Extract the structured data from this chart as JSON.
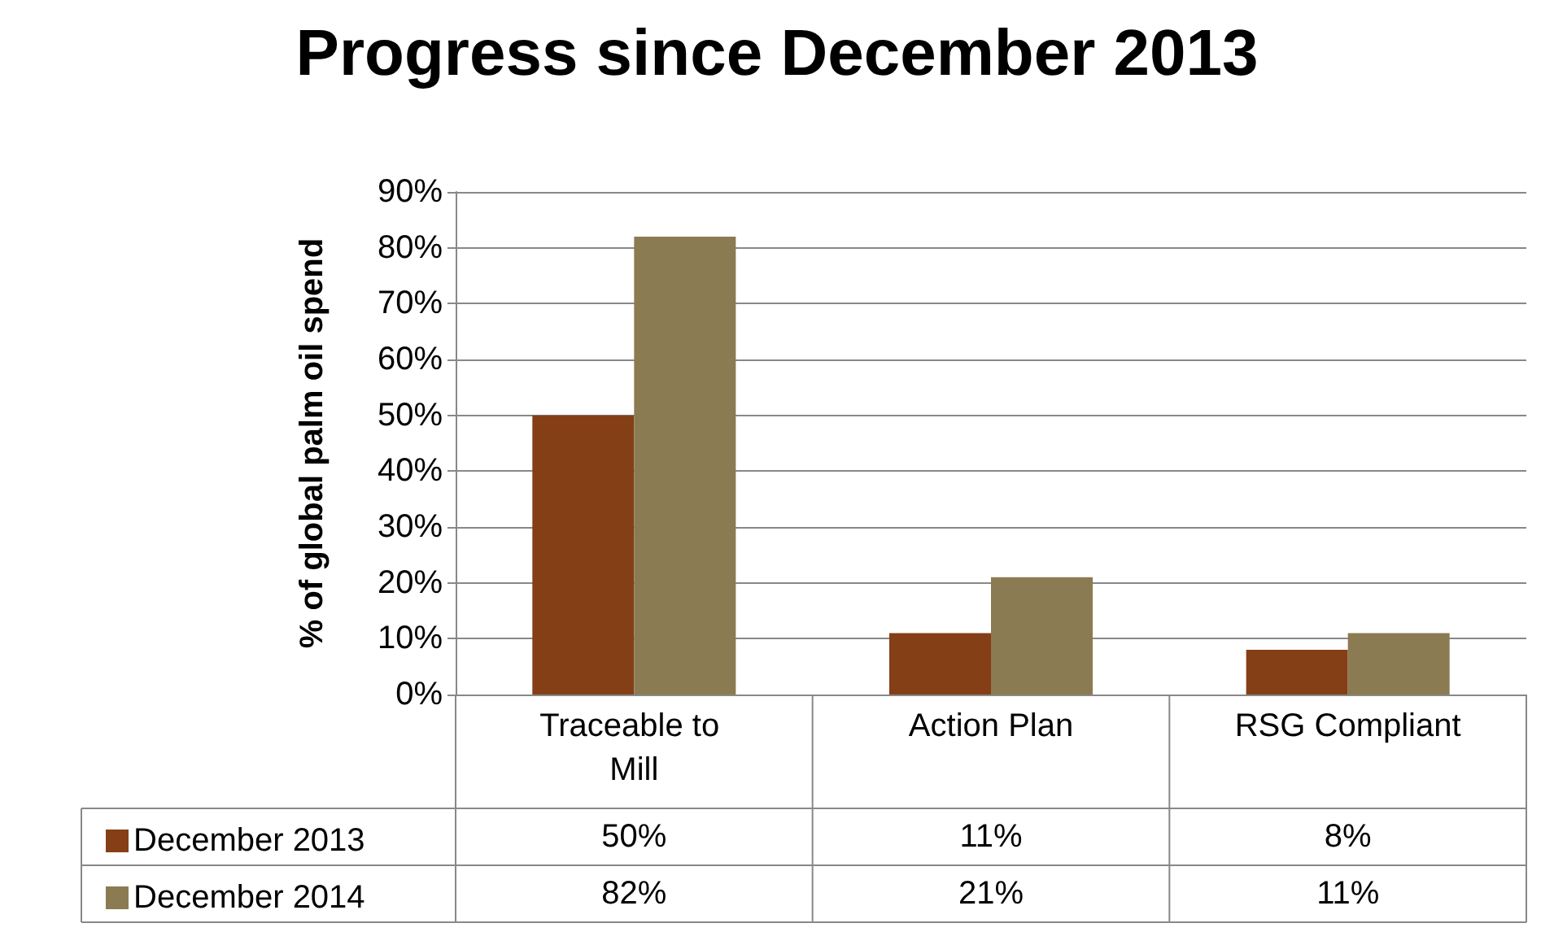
{
  "chart_data": {
    "type": "bar",
    "title": "Progress since December 2013",
    "ylabel": "% of global palm oil spend",
    "categories": [
      "Traceable to Mill",
      "Action Plan",
      "RSG Compliant"
    ],
    "series": [
      {
        "name": "December 2013",
        "color": "#843f16",
        "values": [
          50,
          11,
          8
        ],
        "value_labels": [
          "50%",
          "11%",
          "8%"
        ]
      },
      {
        "name": "December 2014",
        "color": "#8b7b52",
        "values": [
          82,
          21,
          11
        ],
        "value_labels": [
          "82%",
          "21%",
          "11%"
        ]
      }
    ],
    "ylim": [
      0,
      90
    ],
    "yticks": [
      {
        "value": 0,
        "label": "0%"
      },
      {
        "value": 10,
        "label": "10%"
      },
      {
        "value": 20,
        "label": "20%"
      },
      {
        "value": 30,
        "label": "30%"
      },
      {
        "value": 40,
        "label": "40%"
      },
      {
        "value": 50,
        "label": "50%"
      },
      {
        "value": 60,
        "label": "60%"
      },
      {
        "value": 70,
        "label": "70%"
      },
      {
        "value": 80,
        "label": "80%"
      },
      {
        "value": 90,
        "label": "90%"
      }
    ],
    "grid": "y",
    "legend": "bottom left"
  }
}
